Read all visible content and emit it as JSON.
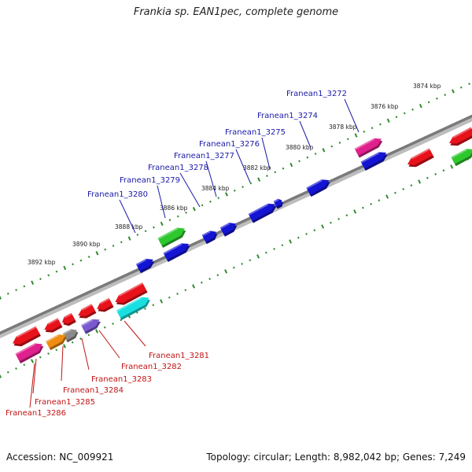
{
  "title": "Frankia sp. EAN1pec, complete genome",
  "footer": {
    "accession": "Accession: NC_009921",
    "stats": "Topology: circular; Length: 8,982,042 bp; Genes: 7,249"
  },
  "colors": {
    "backbone": "#7a7a7a",
    "ticks": "#2e8b2e",
    "label_forward": "#1a1aa8",
    "label_reverse": "#c01515",
    "red": "#e8121b",
    "blue": "#1414d4",
    "green": "#2ec82e",
    "magenta": "#e0208c",
    "cyan": "#18e0e0",
    "purple": "#7a5ad0",
    "orange": "#f08c10",
    "gray": "#8a8a8a"
  },
  "scale_labels": [
    "3874 kbp",
    "3876 kbp",
    "3878 kbp",
    "3880 kbp",
    "3882 kbp",
    "3884 kbp",
    "3886 kbp",
    "3888 kbp",
    "3890 kbp",
    "3892 kbp"
  ],
  "forward_genes": [
    "Franean1_3272",
    "Franean1_3274",
    "Franean1_3275",
    "Franean1_3276",
    "Franean1_3277",
    "Franean1_3278",
    "Franean1_3279",
    "Franean1_3280"
  ],
  "reverse_genes": [
    "Franean1_3281",
    "Franean1_3282",
    "Franean1_3283",
    "Franean1_3284",
    "Franean1_3285",
    "Franean1_3286"
  ]
}
